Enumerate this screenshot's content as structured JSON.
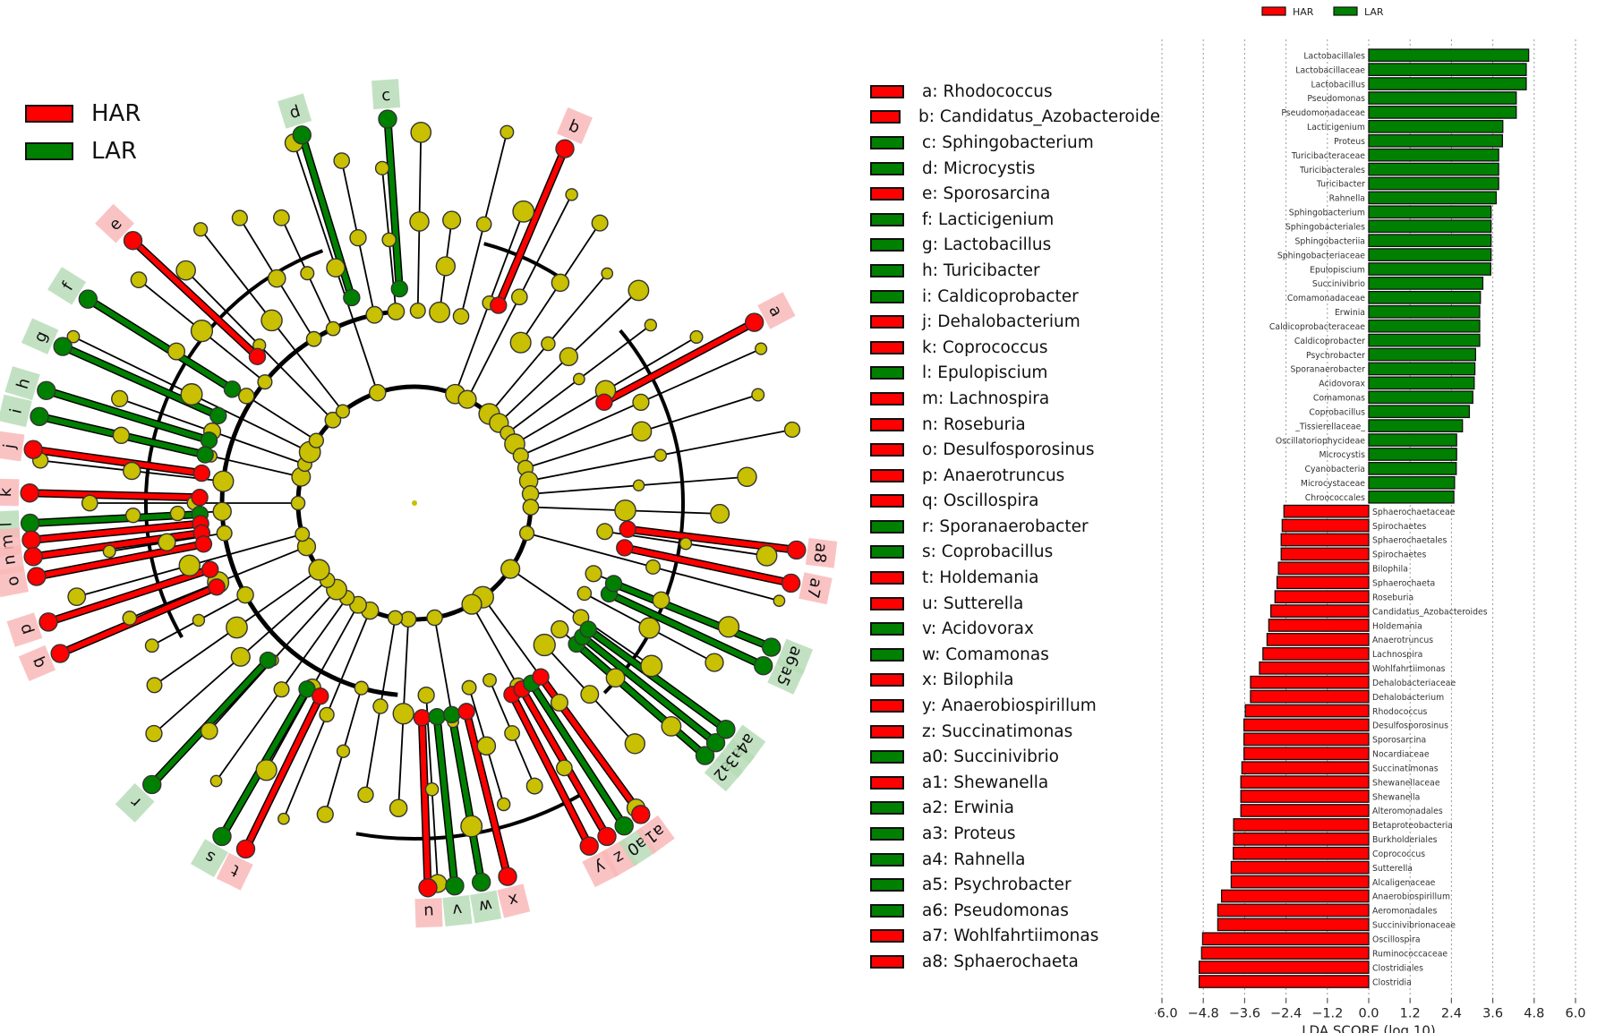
{
  "colors": {
    "HAR": "#ff0000",
    "LAR": "#008000",
    "node": "#c8c000",
    "HAR_bg": "#f9b8b8",
    "LAR_bg": "#b7dcb7"
  },
  "cladogram": {
    "legend": [
      {
        "label": "HAR",
        "group": "HAR"
      },
      {
        "label": "LAR",
        "group": "LAR"
      }
    ],
    "taxa": [
      {
        "key": "a",
        "name": "Rhodococcus",
        "group": "HAR",
        "angle": -28
      },
      {
        "key": "b",
        "name": "Candidatus_Azobacteroide",
        "group": "HAR",
        "angle": -67
      },
      {
        "key": "c",
        "name": "Sphingobacterium",
        "group": "LAR",
        "angle": -94
      },
      {
        "key": "d",
        "name": "Microcystis",
        "group": "LAR",
        "angle": -107
      },
      {
        "key": "e",
        "name": "Sporosarcina",
        "group": "HAR",
        "angle": -137
      },
      {
        "key": "f",
        "name": "Lacticigenium",
        "group": "LAR",
        "angle": -148
      },
      {
        "key": "g",
        "name": "Lactobacillus",
        "group": "LAR",
        "angle": -156
      },
      {
        "key": "h",
        "name": "Turicibacter",
        "group": "LAR",
        "angle": -163
      },
      {
        "key": "i",
        "name": "Caldicoprobacter",
        "group": "LAR",
        "angle": -167
      },
      {
        "key": "j",
        "name": "Dehalobacterium",
        "group": "HAR",
        "angle": -172
      },
      {
        "key": "k",
        "name": "Coprococcus",
        "group": "HAR",
        "angle": -178.5
      },
      {
        "key": "l",
        "name": "Epulopiscium",
        "group": "LAR",
        "angle": 177
      },
      {
        "key": "m",
        "name": "Lachnospira",
        "group": "HAR",
        "angle": 174.5
      },
      {
        "key": "n",
        "name": "Roseburia",
        "group": "HAR",
        "angle": 172
      },
      {
        "key": "o",
        "name": "Desulfosporosinus",
        "group": "HAR",
        "angle": 169
      },
      {
        "key": "p",
        "name": "Anaerotruncus",
        "group": "HAR",
        "angle": 162
      },
      {
        "key": "q",
        "name": "Oscillospira",
        "group": "HAR",
        "angle": 157
      },
      {
        "key": "r",
        "name": "Sporanaerobacter",
        "group": "LAR",
        "angle": 133
      },
      {
        "key": "s",
        "name": "Coprobacillus",
        "group": "LAR",
        "angle": 120
      },
      {
        "key": "t",
        "name": "Holdemania",
        "group": "HAR",
        "angle": 116
      },
      {
        "key": "u",
        "name": "Sutterella",
        "group": "HAR",
        "angle": 88
      },
      {
        "key": "v",
        "name": "Acidovorax",
        "group": "LAR",
        "angle": 84
      },
      {
        "key": "w",
        "name": "Comamonas",
        "group": "LAR",
        "angle": 80
      },
      {
        "key": "x",
        "name": "Bilophila",
        "group": "HAR",
        "angle": 76
      },
      {
        "key": "y",
        "name": "Anaerobiospirillum",
        "group": "HAR",
        "angle": 63
      },
      {
        "key": "z",
        "name": "Succinatimonas",
        "group": "HAR",
        "angle": 60
      },
      {
        "key": "a0",
        "name": "Succinivibrio",
        "group": "LAR",
        "angle": 57
      },
      {
        "key": "a1",
        "name": "Shewanella",
        "group": "HAR",
        "angle": 54
      },
      {
        "key": "a2",
        "name": "Erwinia",
        "group": "LAR",
        "angle": 41
      },
      {
        "key": "a3",
        "name": "Proteus",
        "group": "LAR",
        "angle": 38.5
      },
      {
        "key": "a4",
        "name": "Rahnella",
        "group": "LAR",
        "angle": 36
      },
      {
        "key": "a5",
        "name": "Psychrobacter",
        "group": "LAR",
        "angle": 25
      },
      {
        "key": "a6",
        "name": "Pseudomonas",
        "group": "LAR",
        "angle": 22
      },
      {
        "key": "a7",
        "name": "Wohlfahrtiimonas",
        "group": "HAR",
        "angle": 12
      },
      {
        "key": "a8",
        "name": "Sphaerochaeta",
        "group": "HAR",
        "angle": 7
      }
    ]
  },
  "chart_data": {
    "type": "bar",
    "orientation": "horizontal",
    "xlabel": "LDA SCORE (log 10)",
    "xlim": [
      -6.0,
      6.0
    ],
    "xticks": [
      "-6.0",
      "-4.8",
      "-3.6",
      "-2.4",
      "-1.2",
      "0.0",
      "1.2",
      "2.4",
      "3.6",
      "4.8",
      "6.0"
    ],
    "grid": true,
    "legend_position": "top-center",
    "legend": [
      {
        "label": "HAR",
        "group": "HAR"
      },
      {
        "label": "LAR",
        "group": "LAR"
      }
    ],
    "bars": [
      {
        "label": "Lactobacillales",
        "group": "LAR",
        "value": 4.64
      },
      {
        "label": "Lactobacillaceae",
        "group": "LAR",
        "value": 4.57
      },
      {
        "label": "Lactobacillus",
        "group": "LAR",
        "value": 4.57
      },
      {
        "label": "Pseudomonas",
        "group": "LAR",
        "value": 4.28
      },
      {
        "label": "Pseudomonadaceae",
        "group": "LAR",
        "value": 4.28
      },
      {
        "label": "Lacticigenium",
        "group": "LAR",
        "value": 3.89
      },
      {
        "label": "Proteus",
        "group": "LAR",
        "value": 3.88
      },
      {
        "label": "Turicibacteraceae",
        "group": "LAR",
        "value": 3.77
      },
      {
        "label": "Turicibacterales",
        "group": "LAR",
        "value": 3.77
      },
      {
        "label": "Turicibacter",
        "group": "LAR",
        "value": 3.77
      },
      {
        "label": "Rahnella",
        "group": "LAR",
        "value": 3.7
      },
      {
        "label": "Sphingobacterium",
        "group": "LAR",
        "value": 3.55
      },
      {
        "label": "Sphingobacteriales",
        "group": "LAR",
        "value": 3.55
      },
      {
        "label": "Sphingobacteriia",
        "group": "LAR",
        "value": 3.55
      },
      {
        "label": "Sphingobacteriaceae",
        "group": "LAR",
        "value": 3.55
      },
      {
        "label": "Epulopiscium",
        "group": "LAR",
        "value": 3.54
      },
      {
        "label": "Succinivibrio",
        "group": "LAR",
        "value": 3.31
      },
      {
        "label": "Comamonadaceae",
        "group": "LAR",
        "value": 3.24
      },
      {
        "label": "Erwinia",
        "group": "LAR",
        "value": 3.22
      },
      {
        "label": "Caldicoprobacteraceae",
        "group": "LAR",
        "value": 3.22
      },
      {
        "label": "Caldicoprobacter",
        "group": "LAR",
        "value": 3.22
      },
      {
        "label": "Psychrobacter",
        "group": "LAR",
        "value": 3.1
      },
      {
        "label": "Sporanaerobacter",
        "group": "LAR",
        "value": 3.08
      },
      {
        "label": "Acidovorax",
        "group": "LAR",
        "value": 3.06
      },
      {
        "label": "Comamonas",
        "group": "LAR",
        "value": 3.02
      },
      {
        "label": "Coprobacillus",
        "group": "LAR",
        "value": 2.92
      },
      {
        "label": "_Tissierellaceae_",
        "group": "LAR",
        "value": 2.72
      },
      {
        "label": "Oscillatoriophycideae",
        "group": "LAR",
        "value": 2.55
      },
      {
        "label": "Microcystis",
        "group": "LAR",
        "value": 2.55
      },
      {
        "label": "Cyanobacteria",
        "group": "LAR",
        "value": 2.54
      },
      {
        "label": "Microcystaceae",
        "group": "LAR",
        "value": 2.49
      },
      {
        "label": "Chroococcales",
        "group": "LAR",
        "value": 2.47
      },
      {
        "label": "Sphaerochaetaceae",
        "group": "HAR",
        "value": -2.46
      },
      {
        "label": "Spirochaetes",
        "group": "HAR",
        "value": -2.51
      },
      {
        "label": "Sphaerochaetales",
        "group": "HAR",
        "value": -2.54
      },
      {
        "label": "Spirochaetes",
        "group": "HAR",
        "value": -2.54
      },
      {
        "label": "Bilophila",
        "group": "HAR",
        "value": -2.62
      },
      {
        "label": "Sphaerochaeta",
        "group": "HAR",
        "value": -2.66
      },
      {
        "label": "Roseburia",
        "group": "HAR",
        "value": -2.72
      },
      {
        "label": "Candidatus_Azobacteroides",
        "group": "HAR",
        "value": -2.84
      },
      {
        "label": "Holdemania",
        "group": "HAR",
        "value": -2.9
      },
      {
        "label": "Anaerotruncus",
        "group": "HAR",
        "value": -2.95
      },
      {
        "label": "Lachnospira",
        "group": "HAR",
        "value": -3.07
      },
      {
        "label": "Wohlfahrtiimonas",
        "group": "HAR",
        "value": -3.17
      },
      {
        "label": "Dehalobacteriaceae",
        "group": "HAR",
        "value": -3.43
      },
      {
        "label": "Dehalobacterium",
        "group": "HAR",
        "value": -3.43
      },
      {
        "label": "Rhodococcus",
        "group": "HAR",
        "value": -3.58
      },
      {
        "label": "Desulfosporosinus",
        "group": "HAR",
        "value": -3.62
      },
      {
        "label": "Sporosarcina",
        "group": "HAR",
        "value": -3.62
      },
      {
        "label": "Nocardiaceae",
        "group": "HAR",
        "value": -3.62
      },
      {
        "label": "Succinatimonas",
        "group": "HAR",
        "value": -3.68
      },
      {
        "label": "Shewanellaceae",
        "group": "HAR",
        "value": -3.71
      },
      {
        "label": "Shewanella",
        "group": "HAR",
        "value": -3.71
      },
      {
        "label": "Alteromonadales",
        "group": "HAR",
        "value": -3.71
      },
      {
        "label": "Betaproteobacteria",
        "group": "HAR",
        "value": -3.92
      },
      {
        "label": "Burkholderiales",
        "group": "HAR",
        "value": -3.92
      },
      {
        "label": "Coprococcus",
        "group": "HAR",
        "value": -3.93
      },
      {
        "label": "Sutterella",
        "group": "HAR",
        "value": -3.99
      },
      {
        "label": "Alcaligenaceae",
        "group": "HAR",
        "value": -3.99
      },
      {
        "label": "Anaerobiospirillum",
        "group": "HAR",
        "value": -4.27
      },
      {
        "label": "Aeromonadales",
        "group": "HAR",
        "value": -4.38
      },
      {
        "label": "Succinivibrionaceae",
        "group": "HAR",
        "value": -4.38
      },
      {
        "label": "Oscillospira",
        "group": "HAR",
        "value": -4.82
      },
      {
        "label": "Ruminococcaceae",
        "group": "HAR",
        "value": -4.85
      },
      {
        "label": "Clostridiales",
        "group": "HAR",
        "value": -4.92
      },
      {
        "label": "Clostridia",
        "group": "HAR",
        "value": -4.92
      }
    ]
  }
}
